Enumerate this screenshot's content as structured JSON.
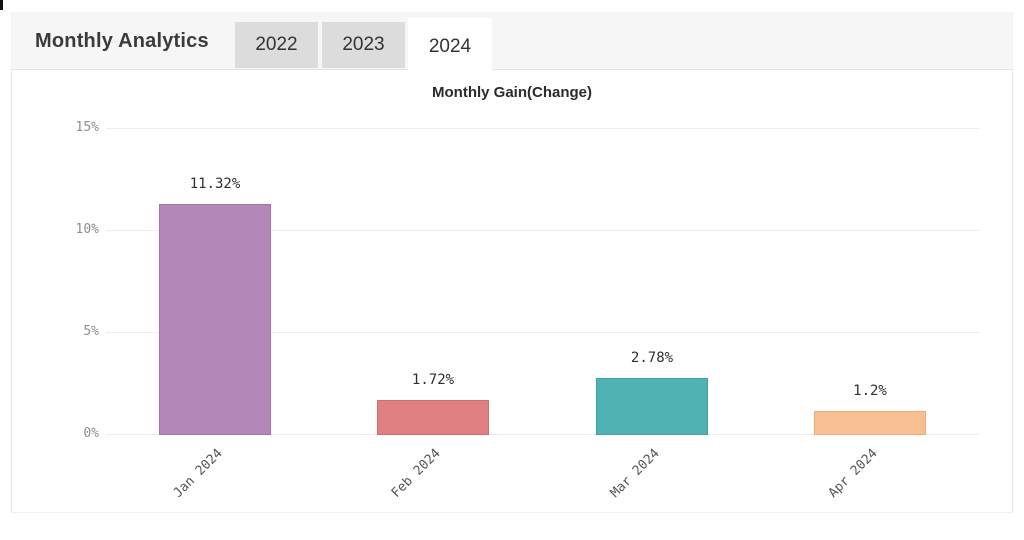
{
  "header": {
    "title": "Monthly Analytics",
    "tabs": [
      {
        "label": "2022",
        "selected": false
      },
      {
        "label": "2023",
        "selected": false
      },
      {
        "label": "2024",
        "selected": true
      }
    ]
  },
  "chart_data": {
    "type": "bar",
    "title": "Monthly Gain(Change)",
    "categories": [
      "Jan 2024",
      "Feb 2024",
      "Mar 2024",
      "Apr 2024"
    ],
    "values": [
      11.32,
      1.72,
      2.78,
      1.2
    ],
    "value_labels": [
      "11.32%",
      "1.72%",
      "2.78%",
      "1.2%"
    ],
    "bar_colors": [
      "#b487b9",
      "#e08082",
      "#50b2b2",
      "#f8bf92"
    ],
    "bar_border_colors": [
      "#a672ad",
      "#d66a6d",
      "#3fa3a3",
      "#f3a97a"
    ],
    "xlabel": "",
    "ylabel": "",
    "ylim": [
      0,
      15
    ],
    "yticks": [
      0,
      5,
      10,
      15
    ],
    "ytick_labels": [
      "0%",
      "5%",
      "10%",
      "15%"
    ],
    "grid": true,
    "legend": false,
    "gridline_color": "#ececec"
  }
}
